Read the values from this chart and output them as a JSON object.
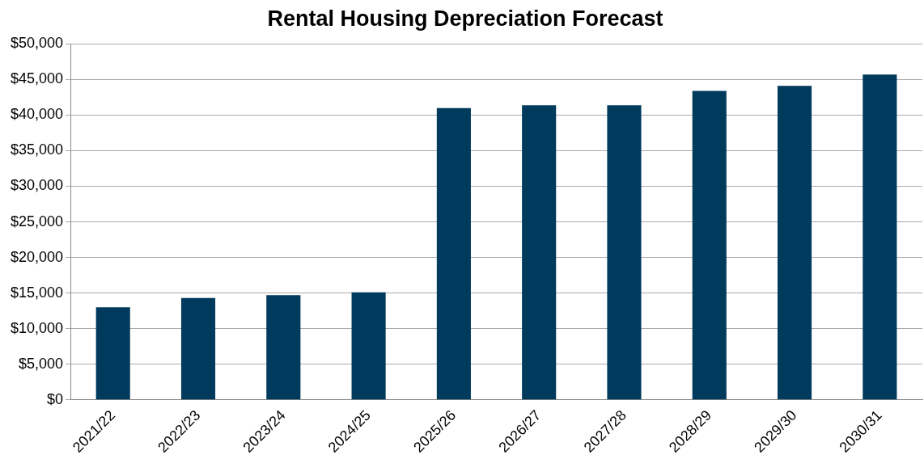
{
  "chart_data": {
    "type": "bar",
    "title": "Rental Housing Depreciation Forecast",
    "categories": [
      "2021/22",
      "2022/23",
      "2023/24",
      "2024/25",
      "2025/26",
      "2026/27",
      "2027/28",
      "2028/29",
      "2029/30",
      "2030/31"
    ],
    "values": [
      13000,
      14300,
      14700,
      15100,
      41000,
      41400,
      41400,
      43400,
      44100,
      45700
    ],
    "color": "#003a5c",
    "ylim": [
      0,
      50000
    ],
    "yticks": [
      {
        "value": 0,
        "label": "$0"
      },
      {
        "value": 5000,
        "label": "$5,000"
      },
      {
        "value": 10000,
        "label": "$10,000"
      },
      {
        "value": 15000,
        "label": "$15,000"
      },
      {
        "value": 20000,
        "label": "$20,000"
      },
      {
        "value": 25000,
        "label": "$25,000"
      },
      {
        "value": 30000,
        "label": "$30,000"
      },
      {
        "value": 35000,
        "label": "$35,000"
      },
      {
        "value": 40000,
        "label": "$40,000"
      },
      {
        "value": 45000,
        "label": "$45,000"
      },
      {
        "value": 50000,
        "label": "$50,000"
      }
    ],
    "grid": "y"
  }
}
